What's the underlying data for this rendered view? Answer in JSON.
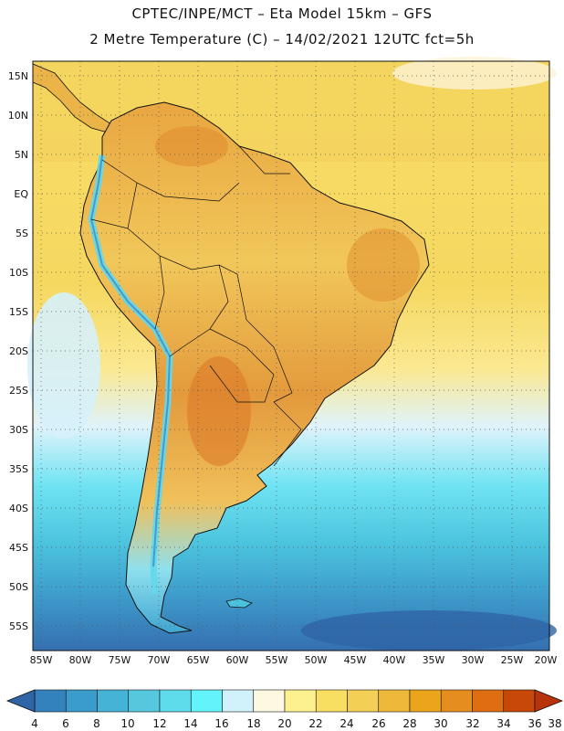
{
  "header": {
    "line1": "CPTEC/INPE/MCT –  Eta Model 15km – GFS",
    "line2": "2 Metre Temperature (C) – 14/02/2021 12UTC fct=5h"
  },
  "map": {
    "lat_labels": [
      "15N",
      "10N",
      "5N",
      "EQ",
      "5S",
      "10S",
      "15S",
      "20S",
      "25S",
      "30S",
      "35S",
      "40S",
      "45S",
      "50S",
      "55S"
    ],
    "lon_labels": [
      "85W",
      "80W",
      "75W",
      "70W",
      "65W",
      "60W",
      "55W",
      "50W",
      "45W",
      "40W",
      "35W",
      "30W",
      "25W",
      "20W"
    ]
  },
  "colorbar": {
    "ticks": [
      "4",
      "6",
      "8",
      "10",
      "12",
      "14",
      "16",
      "18",
      "20",
      "22",
      "24",
      "26",
      "28",
      "30",
      "32",
      "34",
      "36",
      "38"
    ],
    "colors": [
      "#2f64a6",
      "#3482bd",
      "#3a9ccb",
      "#45b3d6",
      "#56c8de",
      "#5edcec",
      "#63f4fb",
      "#d2f2fb",
      "#fdf8e2",
      "#fdf08f",
      "#f8df61",
      "#f3cf55",
      "#eeb83b",
      "#eba51c",
      "#e58d1f",
      "#df6e12",
      "#c8480a",
      "#b8330a"
    ]
  }
}
